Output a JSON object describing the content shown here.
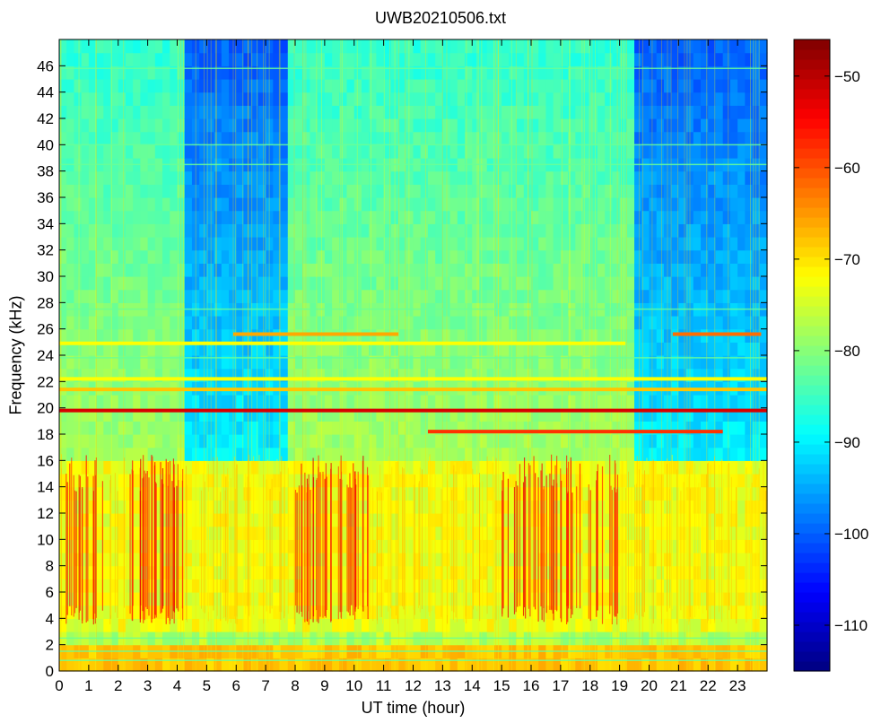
{
  "chart_data": {
    "type": "heatmap",
    "title": "UWB20210506.txt",
    "xlabel": "UT time (hour)",
    "ylabel": "Frequency (kHz)",
    "xlim": [
      0,
      24
    ],
    "ylim": [
      0,
      48
    ],
    "xticks": [
      0,
      1,
      2,
      3,
      4,
      5,
      6,
      7,
      8,
      9,
      10,
      11,
      12,
      13,
      14,
      15,
      16,
      17,
      18,
      19,
      20,
      21,
      22,
      23
    ],
    "yticks": [
      0,
      2,
      4,
      6,
      8,
      10,
      12,
      14,
      16,
      18,
      20,
      22,
      24,
      26,
      28,
      30,
      32,
      34,
      36,
      38,
      40,
      42,
      44,
      46
    ],
    "colorbar": {
      "colormap": "jet",
      "range": [
        -115,
        -46
      ],
      "ticks": [
        -110,
        -100,
        -90,
        -80,
        -70,
        -60,
        -50
      ],
      "tick_labels": [
        "−110",
        "−100",
        "−90",
        "−80",
        "−70",
        "−60",
        "−50"
      ]
    },
    "features": {
      "background_low_freq_dbm": -72,
      "background_high_freq_dbm": -95,
      "quiet_high_freq_intervals_hours": [
        [
          4.2,
          7.8
        ],
        [
          19.5,
          24.0
        ]
      ],
      "strong_transmitter_lines": [
        {
          "freq_khz": 19.8,
          "t_start": 0,
          "t_end": 24,
          "level_dbm": -52
        },
        {
          "freq_khz": 18.2,
          "t_start": 12.5,
          "t_end": 22.5,
          "level_dbm": -58
        },
        {
          "freq_khz": 21.4,
          "t_start": 0,
          "t_end": 24,
          "level_dbm": -68
        },
        {
          "freq_khz": 22.2,
          "t_start": 0,
          "t_end": 24,
          "level_dbm": -72
        },
        {
          "freq_khz": 24.9,
          "t_start": 0,
          "t_end": 19.2,
          "level_dbm": -72
        },
        {
          "freq_khz": 25.6,
          "t_start": 5.9,
          "t_end": 11.5,
          "level_dbm": -66
        },
        {
          "freq_khz": 25.6,
          "t_start": 20.8,
          "t_end": 23.8,
          "level_dbm": -62
        }
      ],
      "weak_lines_khz": [
        0.8,
        1.5,
        2.5,
        23.8,
        27.5,
        38.5,
        40.0,
        45.8
      ],
      "sferic_band_khz": [
        3.5,
        16.5
      ],
      "sferic_peak_level_dbm": -60,
      "sferic_intense_intervals_hours": [
        [
          0.1,
          1.5
        ],
        [
          2.3,
          4.2
        ],
        [
          8.0,
          10.5
        ],
        [
          15.0,
          19.0
        ]
      ]
    }
  }
}
